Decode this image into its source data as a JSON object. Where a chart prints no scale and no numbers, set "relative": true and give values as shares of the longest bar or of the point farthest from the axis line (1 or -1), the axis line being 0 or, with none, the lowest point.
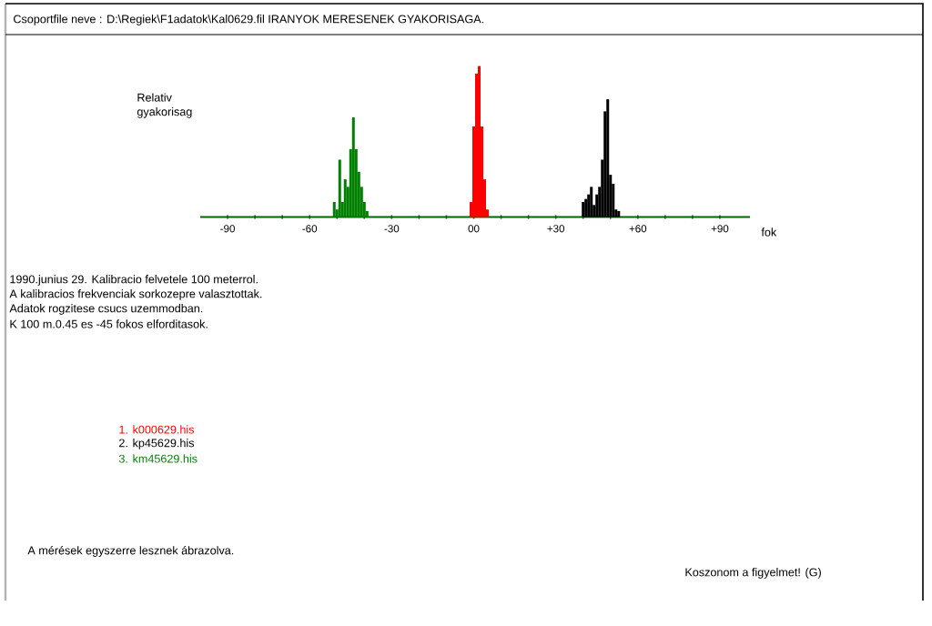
{
  "chart_data": {
    "type": "bar",
    "relative": true,
    "title": "Csoportfile neve : D:\\Regiek\\F1adatok\\Kal0629.fil   IRANYOK MERESENEK GYAKORISAGA.",
    "xlabel": "fok",
    "ylabel": "Relativ gyakorisag",
    "xlim": [
      -100,
      101
    ],
    "xticks": [
      {
        "value": -90,
        "label": "-90"
      },
      {
        "value": -80,
        "label": null
      },
      {
        "value": -70,
        "label": null
      },
      {
        "value": -60,
        "label": "-60"
      },
      {
        "value": -50,
        "label": null
      },
      {
        "value": -40,
        "label": null
      },
      {
        "value": -30,
        "label": "-30"
      },
      {
        "value": -20,
        "label": null
      },
      {
        "value": -10,
        "label": null
      },
      {
        "value": 0,
        "label": "00"
      },
      {
        "value": 10,
        "label": null
      },
      {
        "value": 20,
        "label": null
      },
      {
        "value": 30,
        "label": "+30"
      },
      {
        "value": 40,
        "label": null
      },
      {
        "value": 50,
        "label": null
      },
      {
        "value": 60,
        "label": "+60"
      },
      {
        "value": 70,
        "label": null
      },
      {
        "value": 80,
        "label": null
      },
      {
        "value": 90,
        "label": "+90"
      }
    ],
    "legend": "bottom left",
    "series": [
      {
        "name": "1. k000629.his",
        "color": "#ff0000",
        "x": [
          -1,
          0,
          1,
          2,
          3,
          4,
          5
        ],
        "values": [
          0.1,
          0.6,
          0.95,
          1.0,
          0.6,
          0.25,
          0.05
        ]
      },
      {
        "name": "2. kp45629.his",
        "color": "#000000",
        "x": [
          40,
          41,
          42,
          43,
          44,
          45,
          46,
          47,
          48,
          49,
          50,
          51,
          52,
          53
        ],
        "values": [
          0.1,
          0.12,
          0.15,
          0.2,
          0.08,
          0.15,
          0.2,
          0.38,
          0.7,
          0.78,
          0.28,
          0.22,
          0.05,
          0.04
        ]
      },
      {
        "name": "3. km45629.his",
        "color": "#008000",
        "x": [
          -51,
          -50,
          -49,
          -48,
          -47,
          -46,
          -45,
          -44,
          -43,
          -42,
          -41,
          -40,
          -39
        ],
        "values": [
          0.1,
          0.05,
          0.38,
          0.1,
          0.25,
          0.2,
          0.45,
          0.66,
          0.45,
          0.3,
          0.2,
          0.1,
          0.04
        ]
      }
    ],
    "annotations": [
      "1990.junius 29. Kalibracio felvetele 100 meterrol.",
      "A kalibracios frekvenciak sorkozepre valasztottak.",
      "Adatok rogzitese csucs uzemmodban.",
      "K 100 m.0.45 es -45 fokos elforditasok.",
      "A mérések egyszerre lesznek ábrazolva.",
      "Koszonom a figyelmet!     (G)"
    ]
  }
}
